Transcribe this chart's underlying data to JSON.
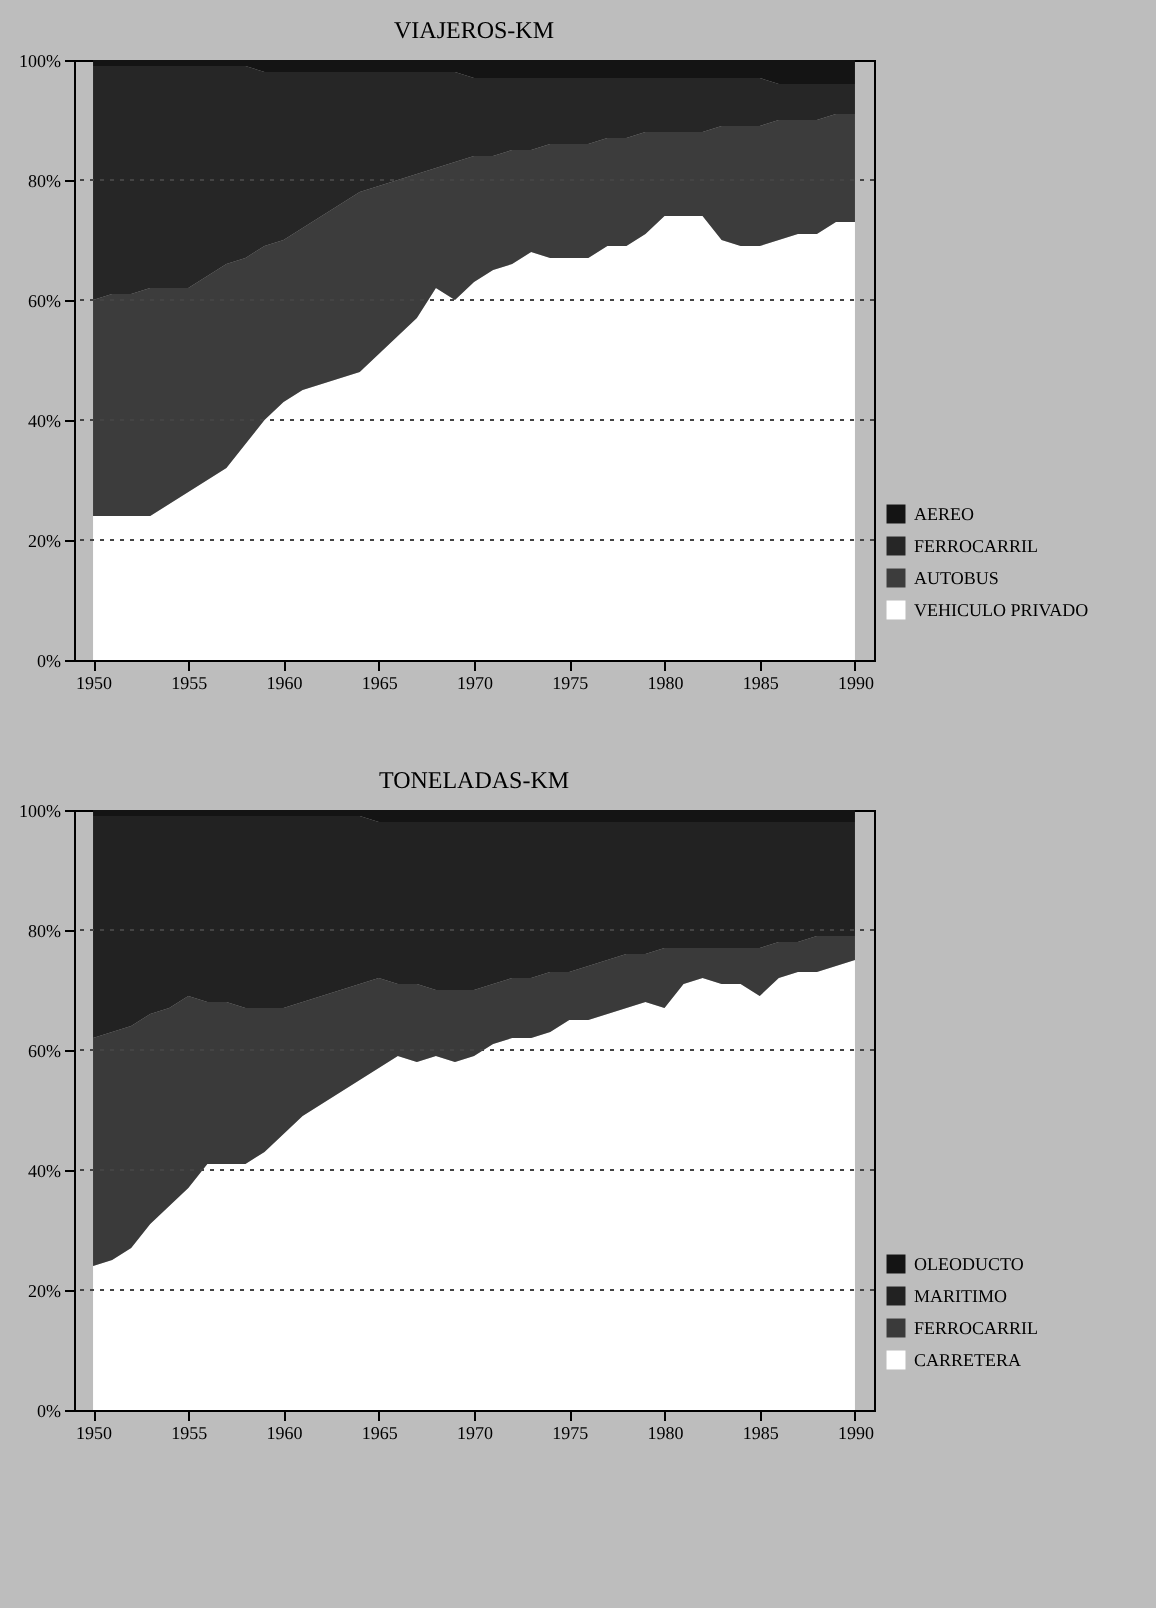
{
  "chart_data": [
    {
      "type": "area",
      "title": "VIAJEROS-KM",
      "stacked": true,
      "legend": "bottom right",
      "grid": "y",
      "line_style": "dotted",
      "x": [
        1950,
        1951,
        1952,
        1953,
        1954,
        1955,
        1956,
        1957,
        1958,
        1959,
        1960,
        1961,
        1962,
        1963,
        1964,
        1965,
        1966,
        1967,
        1968,
        1969,
        1970,
        1971,
        1972,
        1973,
        1974,
        1975,
        1976,
        1977,
        1978,
        1979,
        1980,
        1981,
        1982,
        1983,
        1984,
        1985,
        1986,
        1987,
        1988,
        1989,
        1990
      ],
      "xlim": [
        1949,
        1991
      ],
      "xticks": [
        1950,
        1955,
        1960,
        1965,
        1970,
        1975,
        1980,
        1985,
        1990
      ],
      "ylim": [
        0,
        100
      ],
      "yticks": [
        {
          "value": 0,
          "label": "0%"
        },
        {
          "value": 20,
          "label": "20%"
        },
        {
          "value": 40,
          "label": "40%"
        },
        {
          "value": 60,
          "label": "60%"
        },
        {
          "value": 80,
          "label": "80%"
        },
        {
          "value": 100,
          "label": "100%"
        }
      ],
      "series": [
        {
          "name": "VEHICULO PRIVADO",
          "color": "#ffffff",
          "values": [
            24,
            24,
            24,
            24,
            26,
            28,
            30,
            32,
            36,
            40,
            43,
            45,
            46,
            47,
            48,
            51,
            54,
            57,
            62,
            60,
            63,
            65,
            66,
            68,
            67,
            67,
            67,
            69,
            69,
            71,
            74,
            74,
            74,
            70,
            69,
            69,
            70,
            71,
            71,
            73,
            73
          ]
        },
        {
          "name": "AUTOBUS",
          "color": "#3c3c3c",
          "values": [
            36,
            37,
            37,
            38,
            36,
            34,
            34,
            34,
            31,
            29,
            27,
            27,
            28,
            29,
            30,
            28,
            26,
            24,
            20,
            23,
            21,
            19,
            19,
            17,
            19,
            19,
            19,
            18,
            18,
            17,
            14,
            14,
            14,
            19,
            20,
            20,
            20,
            19,
            19,
            18,
            18
          ]
        },
        {
          "name": "FERROCARRIL",
          "color": "#262626",
          "values": [
            39,
            38,
            38,
            37,
            37,
            37,
            35,
            33,
            32,
            29,
            28,
            26,
            24,
            22,
            20,
            19,
            18,
            17,
            16,
            15,
            13,
            13,
            12,
            12,
            11,
            11,
            11,
            10,
            10,
            9,
            9,
            9,
            9,
            8,
            8,
            8,
            6,
            6,
            6,
            5,
            5
          ]
        },
        {
          "name": "AEREO",
          "color": "#141414",
          "values": [
            1,
            1,
            1,
            1,
            1,
            1,
            1,
            1,
            1,
            2,
            2,
            2,
            2,
            2,
            2,
            2,
            2,
            2,
            2,
            2,
            3,
            3,
            3,
            3,
            3,
            3,
            3,
            3,
            3,
            3,
            3,
            3,
            3,
            3,
            3,
            3,
            4,
            4,
            4,
            4,
            4
          ]
        }
      ]
    },
    {
      "type": "area",
      "title": "TONELADAS-KM",
      "stacked": true,
      "legend": "bottom right",
      "grid": "y",
      "line_style": "dotted",
      "x": [
        1950,
        1951,
        1952,
        1953,
        1954,
        1955,
        1956,
        1957,
        1958,
        1959,
        1960,
        1961,
        1962,
        1963,
        1964,
        1965,
        1966,
        1967,
        1968,
        1969,
        1970,
        1971,
        1972,
        1973,
        1974,
        1975,
        1976,
        1977,
        1978,
        1979,
        1980,
        1981,
        1982,
        1983,
        1984,
        1985,
        1986,
        1987,
        1988,
        1989,
        1990
      ],
      "xlim": [
        1949,
        1991
      ],
      "xticks": [
        1950,
        1955,
        1960,
        1965,
        1970,
        1975,
        1980,
        1985,
        1990
      ],
      "ylim": [
        0,
        100
      ],
      "yticks": [
        {
          "value": 0,
          "label": "0%"
        },
        {
          "value": 20,
          "label": "20%"
        },
        {
          "value": 40,
          "label": "40%"
        },
        {
          "value": 60,
          "label": "60%"
        },
        {
          "value": 80,
          "label": "80%"
        },
        {
          "value": 100,
          "label": "100%"
        }
      ],
      "series": [
        {
          "name": "CARRETERA",
          "color": "#ffffff",
          "values": [
            24,
            25,
            27,
            31,
            34,
            37,
            41,
            41,
            41,
            43,
            46,
            49,
            51,
            53,
            55,
            57,
            59,
            58,
            59,
            58,
            59,
            61,
            62,
            62,
            63,
            65,
            65,
            66,
            67,
            68,
            67,
            71,
            72,
            71,
            71,
            69,
            72,
            73,
            73,
            74,
            75
          ]
        },
        {
          "name": "FERROCARRIL",
          "color": "#3a3a3a",
          "values": [
            38,
            38,
            37,
            35,
            33,
            32,
            27,
            27,
            26,
            24,
            21,
            19,
            18,
            17,
            16,
            15,
            12,
            13,
            11,
            12,
            11,
            10,
            10,
            10,
            10,
            8,
            9,
            9,
            9,
            8,
            10,
            6,
            5,
            6,
            6,
            8,
            6,
            5,
            6,
            5,
            4
          ]
        },
        {
          "name": "MARITIMO",
          "color": "#222222",
          "values": [
            37,
            36,
            35,
            33,
            32,
            30,
            31,
            31,
            32,
            32,
            32,
            31,
            30,
            29,
            28,
            26,
            27,
            27,
            28,
            28,
            28,
            27,
            26,
            26,
            25,
            25,
            24,
            23,
            22,
            22,
            21,
            21,
            21,
            21,
            21,
            21,
            20,
            20,
            19,
            19,
            19
          ]
        },
        {
          "name": "OLEODUCTO",
          "color": "#141414",
          "values": [
            1,
            1,
            1,
            1,
            1,
            1,
            1,
            1,
            1,
            1,
            1,
            1,
            1,
            1,
            1,
            2,
            2,
            2,
            2,
            2,
            2,
            2,
            2,
            2,
            2,
            2,
            2,
            2,
            2,
            2,
            2,
            2,
            2,
            2,
            2,
            2,
            2,
            2,
            2,
            2,
            2
          ]
        }
      ]
    }
  ]
}
